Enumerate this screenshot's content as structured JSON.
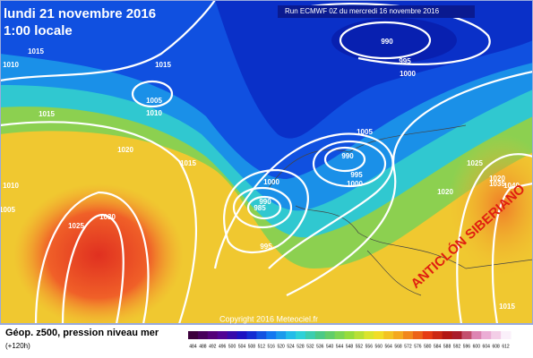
{
  "header": {
    "date": "lundi 21 novembre 2016",
    "time": "1:00 locale",
    "run": "Run ECMWF 0Z du mercredi 16 novembre 2016"
  },
  "annotation": "ANTICLÓN SIBERIANO",
  "isobar_labels": [
    "1015",
    "1010",
    "1015",
    "1005",
    "1010",
    "1015",
    "1020",
    "1015",
    "1010",
    "1005",
    "1030",
    "1025",
    "990",
    "995",
    "1000",
    "1005",
    "990",
    "995",
    "1000",
    "1000",
    "990",
    "985",
    "995",
    "1020",
    "1025",
    "1020",
    "1035",
    "1040",
    "1015"
  ],
  "footer": {
    "title": "Géop. z500, pression niveau mer",
    "lead": "(+120h)",
    "copyright": "Copyright 2016 Meteociel.fr"
  },
  "colorbar": {
    "labels": [
      "484",
      "488",
      "492",
      "496",
      "500",
      "504",
      "508",
      "512",
      "516",
      "520",
      "524",
      "528",
      "532",
      "536",
      "540",
      "544",
      "548",
      "552",
      "556",
      "560",
      "564",
      "568",
      "572",
      "576",
      "580",
      "584",
      "588",
      "592",
      "596",
      "600",
      "604",
      "608",
      "612"
    ]
  }
}
